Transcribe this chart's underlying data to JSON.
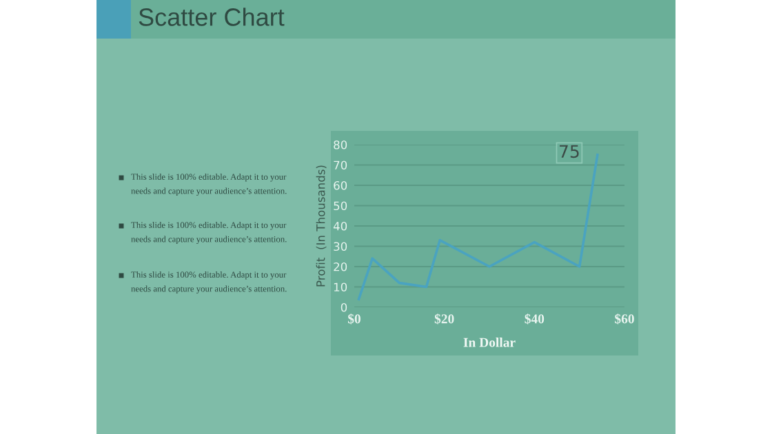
{
  "chart_data": {
    "type": "line",
    "title": "Scatter Chart",
    "xlabel": "In Dollar",
    "ylabel": "Profit  (In Thousands)",
    "x": [
      1,
      4,
      10,
      16,
      19,
      30,
      40,
      50,
      54
    ],
    "series": [
      {
        "color": "#4aa3c0",
        "values": [
          4,
          24,
          12,
          10,
          33,
          20,
          32,
          20,
          75
        ]
      }
    ],
    "xlim": [
      0,
      60
    ],
    "xticks": [
      {
        "value": 0,
        "label": "$0"
      },
      {
        "value": 20,
        "label": "$20"
      },
      {
        "value": 40,
        "label": "$40"
      },
      {
        "value": 60,
        "label": "$60"
      }
    ],
    "ylim": [
      0,
      80
    ],
    "yticks": [
      0,
      10,
      20,
      30,
      40,
      50,
      60,
      70,
      80
    ],
    "grid": "y",
    "marker": "none",
    "line_style": "solid",
    "annotations": [
      {
        "text": "75",
        "x": 54,
        "y": 75
      },
      "This slide is 100% editable. Adapt it to your\nneeds and capture your audience’s attention.",
      "This slide is 100% editable. Adapt it to your\nneeds and capture your audience’s attention.",
      "This slide is 100% editable. Adapt it to your\nneeds and capture your audience’s attention."
    ]
  }
}
